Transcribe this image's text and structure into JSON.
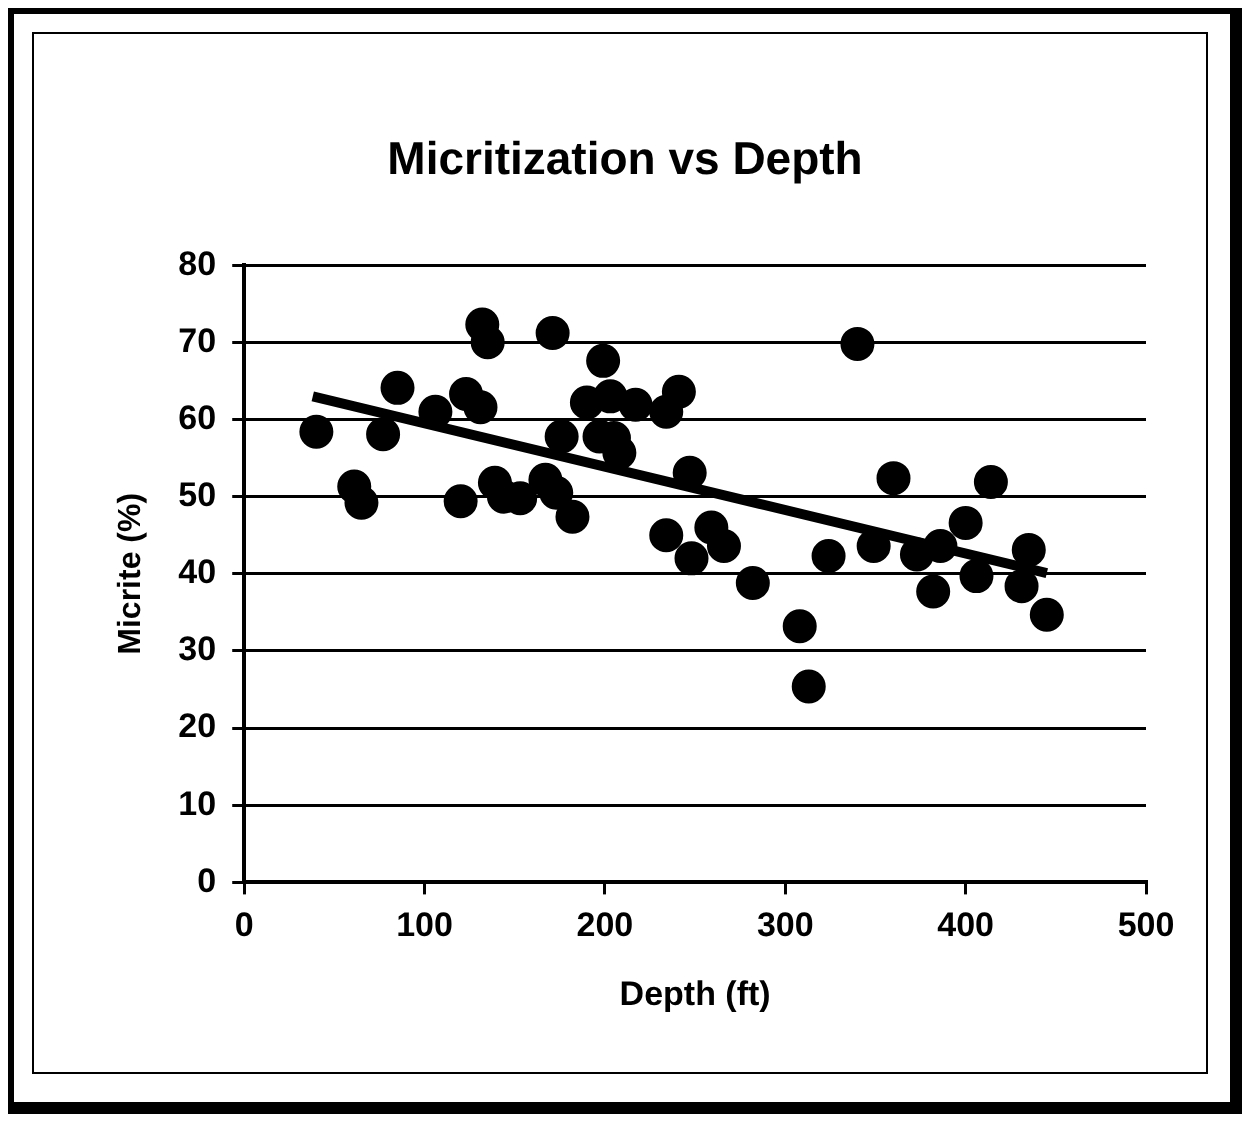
{
  "chart_data": {
    "type": "scatter",
    "title": "Micritization vs Depth",
    "xlabel": "Depth (ft)",
    "ylabel": "Micrite (%)",
    "xlim": [
      0,
      500
    ],
    "xticks": [
      0,
      100,
      200,
      300,
      400,
      500
    ],
    "ylim": [
      0,
      80
    ],
    "yticks": [
      0,
      10,
      20,
      30,
      40,
      50,
      60,
      70,
      80
    ],
    "grid": "y",
    "legend": false,
    "marker": "circle",
    "series": [
      {
        "color": "#000000",
        "x": [
          40,
          61,
          65,
          77,
          85,
          106,
          120,
          123,
          131,
          132,
          135,
          139,
          144,
          153,
          171,
          167,
          176,
          173,
          182,
          199,
          190,
          203,
          197,
          205,
          208,
          217,
          234,
          241,
          247,
          234,
          248,
          259,
          266,
          282,
          308,
          313,
          324,
          340,
          349,
          360,
          373,
          386,
          382,
          400,
          406,
          414,
          435,
          431,
          445
        ],
        "values": [
          58.4,
          51.3,
          49.2,
          58.1,
          64.1,
          61.0,
          49.4,
          63.3,
          61.6,
          72.3,
          70.0,
          51.8,
          50.0,
          49.8,
          71.2,
          52.2,
          57.8,
          50.5,
          47.4,
          67.6,
          62.2,
          63.0,
          57.8,
          57.6,
          55.7,
          61.9,
          61.0,
          63.6,
          53.1,
          45.0,
          42.0,
          46.0,
          43.6,
          38.8,
          33.2,
          25.4,
          42.3,
          69.8,
          43.6,
          52.4,
          42.5,
          43.6,
          37.7,
          46.6,
          39.7,
          51.9,
          43.1,
          38.4,
          34.7
        ]
      },
      {
        "type": "line",
        "color": "#000000",
        "marker": "none",
        "x": [
          38,
          445
        ],
        "values": [
          63.0,
          40.1
        ]
      }
    ]
  }
}
